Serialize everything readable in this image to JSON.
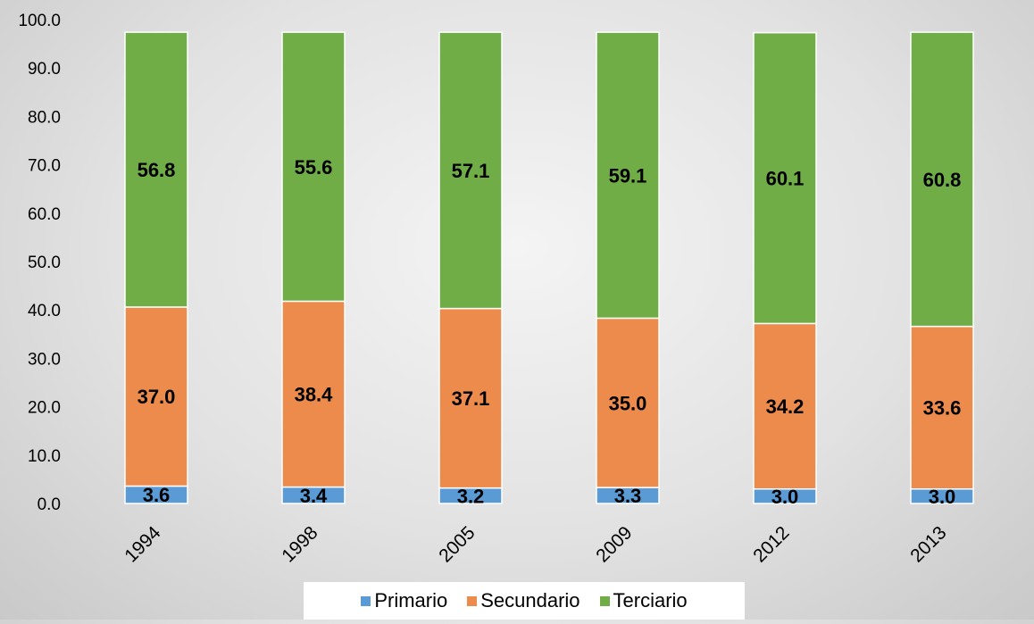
{
  "chart_data": {
    "type": "bar",
    "stacked": true,
    "title": "",
    "xlabel": "",
    "ylabel": "",
    "ylim": [
      0,
      100
    ],
    "yticks": [
      "0.0",
      "10.0",
      "20.0",
      "30.0",
      "40.0",
      "50.0",
      "60.0",
      "70.0",
      "80.0",
      "90.0",
      "100.0"
    ],
    "categories": [
      "1994",
      "1998",
      "2005",
      "2009",
      "2012",
      "2013"
    ],
    "series": [
      {
        "name": "Primario",
        "color": "#5b9bd5",
        "values": [
          3.6,
          3.4,
          3.2,
          3.3,
          3.0,
          3.0
        ],
        "labels": [
          "3.6",
          "3.4",
          "3.2",
          "3.3",
          "3.0",
          "3.0"
        ]
      },
      {
        "name": "Secundario",
        "color": "#ed8b4c",
        "values": [
          37.0,
          38.4,
          37.1,
          35.0,
          34.2,
          33.6
        ],
        "labels": [
          "37.0",
          "38.4",
          "37.1",
          "35.0",
          "34.2",
          "33.6"
        ]
      },
      {
        "name": "Terciario",
        "color": "#70ad47",
        "values": [
          56.8,
          55.6,
          57.1,
          59.1,
          60.1,
          60.8
        ],
        "labels": [
          "56.8",
          "55.6",
          "57.1",
          "59.1",
          "60.1",
          "60.8"
        ]
      }
    ],
    "grid": false,
    "legend": "bottom"
  }
}
